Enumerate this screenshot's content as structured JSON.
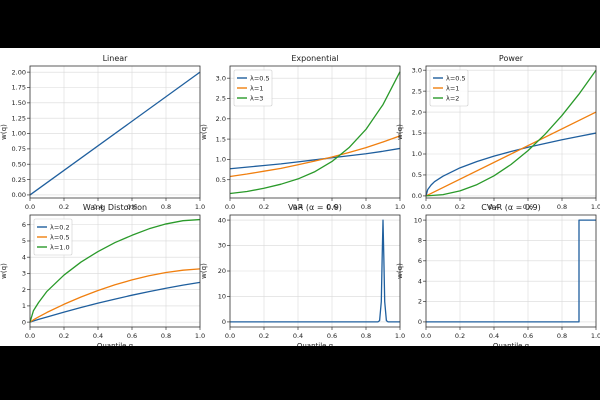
{
  "chart_data": [
    {
      "type": "line",
      "title": "Linear",
      "xlabel": "",
      "ylabel": "w(q)",
      "xlim": [
        0.0,
        1.0
      ],
      "ylim": [
        -0.05,
        2.1
      ],
      "xticks": [
        0.0,
        0.2,
        0.4,
        0.6,
        0.8,
        1.0
      ],
      "yticks": [
        0.0,
        0.25,
        0.5,
        0.75,
        1.0,
        1.25,
        1.5,
        1.75,
        2.0
      ],
      "ytick_labels": [
        "0.00",
        "0.25",
        "0.50",
        "0.75",
        "1.00",
        "1.25",
        "1.50",
        "1.75",
        "2.00"
      ],
      "grid": true,
      "legend": null,
      "series": [
        {
          "name": "",
          "color": "#1f5f9e",
          "x": [
            0,
            1
          ],
          "y": [
            0,
            2
          ]
        }
      ]
    },
    {
      "type": "line",
      "title": "Exponential",
      "xlabel": "",
      "ylabel": "w(q)",
      "xlim": [
        0.0,
        1.0
      ],
      "ylim": [
        0.05,
        3.3
      ],
      "xticks": [
        0.0,
        0.2,
        0.4,
        0.6,
        0.8,
        1.0
      ],
      "yticks": [
        0.5,
        1.0,
        1.5,
        2.0,
        2.5,
        3.0
      ],
      "ytick_labels": [
        "0.5",
        "1.0",
        "1.5",
        "2.0",
        "2.5",
        "3.0"
      ],
      "grid": true,
      "legend": "top-left",
      "series": [
        {
          "name": "λ=0.5",
          "color": "#1f5f9e",
          "x": [
            0,
            0.1,
            0.2,
            0.3,
            0.4,
            0.5,
            0.6,
            0.7,
            0.8,
            0.9,
            1.0
          ],
          "y": [
            0.77,
            0.81,
            0.85,
            0.89,
            0.94,
            0.99,
            1.04,
            1.09,
            1.14,
            1.2,
            1.27
          ]
        },
        {
          "name": "λ=1",
          "color": "#f07f0f",
          "x": [
            0,
            0.1,
            0.2,
            0.3,
            0.4,
            0.5,
            0.6,
            0.7,
            0.8,
            0.9,
            1.0
          ],
          "y": [
            0.58,
            0.64,
            0.71,
            0.78,
            0.87,
            0.96,
            1.06,
            1.17,
            1.29,
            1.43,
            1.58
          ]
        },
        {
          "name": "λ=3",
          "color": "#2a9a2a",
          "x": [
            0,
            0.1,
            0.2,
            0.3,
            0.4,
            0.5,
            0.6,
            0.7,
            0.8,
            0.9,
            1.0
          ],
          "y": [
            0.16,
            0.21,
            0.29,
            0.39,
            0.52,
            0.7,
            0.95,
            1.29,
            1.74,
            2.35,
            3.16
          ]
        }
      ]
    },
    {
      "type": "line",
      "title": "Power",
      "xlabel": "",
      "ylabel": "w(q)",
      "xlim": [
        0.0,
        1.0
      ],
      "ylim": [
        -0.05,
        3.1
      ],
      "xticks": [
        0.0,
        0.2,
        0.4,
        0.6,
        0.8,
        1.0
      ],
      "yticks": [
        0.0,
        0.5,
        1.0,
        1.5,
        2.0,
        2.5,
        3.0
      ],
      "ytick_labels": [
        "0.0",
        "0.5",
        "1.0",
        "1.5",
        "2.0",
        "2.5",
        "3.0"
      ],
      "grid": true,
      "legend": "top-left",
      "series": [
        {
          "name": "λ=0.5",
          "color": "#1f5f9e",
          "x": [
            0,
            0.01,
            0.03,
            0.05,
            0.1,
            0.2,
            0.3,
            0.4,
            0.5,
            0.6,
            0.7,
            0.8,
            0.9,
            1.0
          ],
          "y": [
            0,
            0.15,
            0.26,
            0.34,
            0.47,
            0.67,
            0.82,
            0.95,
            1.06,
            1.16,
            1.25,
            1.34,
            1.42,
            1.5
          ]
        },
        {
          "name": "λ=1",
          "color": "#f07f0f",
          "x": [
            0,
            1
          ],
          "y": [
            0,
            2
          ]
        },
        {
          "name": "λ=2",
          "color": "#2a9a2a",
          "x": [
            0,
            0.1,
            0.2,
            0.3,
            0.4,
            0.5,
            0.6,
            0.7,
            0.8,
            0.9,
            1.0
          ],
          "y": [
            0,
            0.03,
            0.12,
            0.27,
            0.48,
            0.75,
            1.08,
            1.47,
            1.92,
            2.43,
            3.0
          ]
        }
      ]
    },
    {
      "type": "line",
      "title": "Wang Distortion",
      "xlabel": "Quantile q",
      "ylabel": "w(q)",
      "xlim": [
        0.0,
        1.0
      ],
      "ylim": [
        -0.3,
        6.6
      ],
      "xticks": [
        0.0,
        0.2,
        0.4,
        0.6,
        0.8,
        1.0
      ],
      "yticks": [
        0,
        1,
        2,
        3,
        4,
        5,
        6
      ],
      "ytick_labels": [
        "0",
        "1",
        "2",
        "3",
        "4",
        "5",
        "6"
      ],
      "grid": true,
      "legend": "top-left",
      "series": [
        {
          "name": "λ=0.2",
          "color": "#1f5f9e",
          "x": [
            0,
            0.02,
            0.05,
            0.1,
            0.2,
            0.3,
            0.4,
            0.5,
            0.6,
            0.7,
            0.8,
            0.9,
            1.0
          ],
          "y": [
            0,
            0.07,
            0.17,
            0.32,
            0.62,
            0.9,
            1.17,
            1.42,
            1.66,
            1.88,
            2.09,
            2.28,
            2.45
          ]
        },
        {
          "name": "λ=0.5",
          "color": "#f07f0f",
          "x": [
            0,
            0.02,
            0.05,
            0.1,
            0.2,
            0.3,
            0.4,
            0.5,
            0.6,
            0.7,
            0.8,
            0.9,
            1.0
          ],
          "y": [
            0,
            0.14,
            0.32,
            0.6,
            1.1,
            1.55,
            1.95,
            2.3,
            2.6,
            2.86,
            3.06,
            3.2,
            3.28
          ]
        },
        {
          "name": "λ=1.0",
          "color": "#2a9a2a",
          "x": [
            0,
            0.02,
            0.05,
            0.1,
            0.2,
            0.3,
            0.4,
            0.5,
            0.6,
            0.7,
            0.8,
            0.9,
            1.0
          ],
          "y": [
            0,
            0.7,
            1.2,
            1.9,
            2.9,
            3.7,
            4.35,
            4.9,
            5.35,
            5.75,
            6.05,
            6.25,
            6.32
          ]
        }
      ]
    },
    {
      "type": "line",
      "title": "VaR (α = 0.9)",
      "xlabel": "Quantile q",
      "ylabel": "w(q)",
      "xlim": [
        0.0,
        1.0
      ],
      "ylim": [
        -2,
        42
      ],
      "xticks": [
        0.0,
        0.2,
        0.4,
        0.6,
        0.8,
        1.0
      ],
      "yticks": [
        0,
        10,
        20,
        30,
        40
      ],
      "ytick_labels": [
        "0",
        "10",
        "20",
        "30",
        "40"
      ],
      "grid": true,
      "legend": null,
      "series": [
        {
          "name": "",
          "color": "#1f5f9e",
          "x": [
            0,
            0.87,
            0.88,
            0.89,
            0.895,
            0.9,
            0.905,
            0.91,
            0.92,
            0.93,
            1.0
          ],
          "y": [
            0,
            0,
            0.5,
            8,
            25,
            40,
            25,
            8,
            0.5,
            0,
            0
          ]
        }
      ]
    },
    {
      "type": "line",
      "title": "CVaR (α = 0.9)",
      "xlabel": "Quantile q",
      "ylabel": "w(q)",
      "xlim": [
        0.0,
        1.0
      ],
      "ylim": [
        -0.5,
        10.5
      ],
      "xticks": [
        0.0,
        0.2,
        0.4,
        0.6,
        0.8,
        1.0
      ],
      "yticks": [
        0,
        2,
        4,
        6,
        8,
        10
      ],
      "ytick_labels": [
        "0",
        "2",
        "4",
        "6",
        "8",
        "10"
      ],
      "grid": true,
      "legend": null,
      "series": [
        {
          "name": "",
          "color": "#1f5f9e",
          "x": [
            0,
            0.9,
            0.9,
            1.0
          ],
          "y": [
            0,
            0,
            10,
            10
          ]
        }
      ]
    }
  ]
}
